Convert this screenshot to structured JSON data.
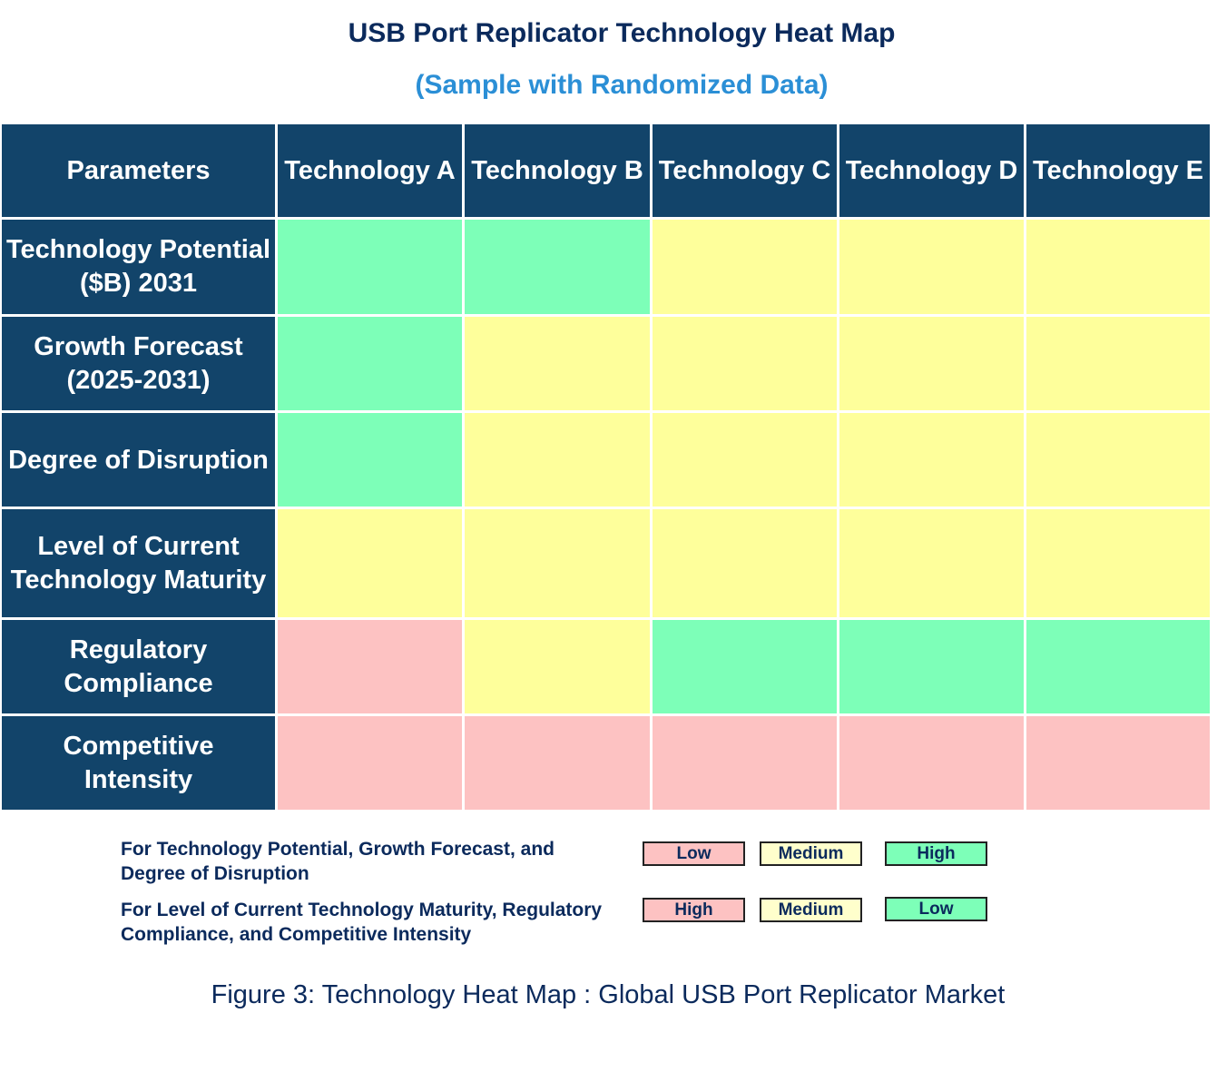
{
  "title": "USB Port Replicator Technology Heat Map",
  "subtitle": "(Sample with Randomized Data)",
  "chart_data": {
    "type": "heatmap",
    "corner_label": "Parameters",
    "columns": [
      "Technology A",
      "Technology B",
      "Technology C",
      "Technology D",
      "Technology E"
    ],
    "rows": [
      {
        "label": "Technology Potential ($B) 2031",
        "values": [
          "High",
          "High",
          "Medium",
          "Medium",
          "Medium"
        ]
      },
      {
        "label": "Growth Forecast (2025-2031)",
        "values": [
          "High",
          "Medium",
          "Medium",
          "Medium",
          "Medium"
        ]
      },
      {
        "label": "Degree of Disruption",
        "values": [
          "High",
          "Medium",
          "Medium",
          "Medium",
          "Medium"
        ]
      },
      {
        "label": "Level of Current Technology Maturity",
        "values": [
          "Medium",
          "Medium",
          "Medium",
          "Medium",
          "Medium"
        ]
      },
      {
        "label": "Regulatory Compliance",
        "values": [
          "High",
          "Medium",
          "Low",
          "Low",
          "Low"
        ]
      },
      {
        "label": "Competitive Intensity",
        "values": [
          "High",
          "High",
          "High",
          "High",
          "High"
        ]
      }
    ],
    "colors": {
      "pink": "#fdc2c2",
      "yellow": "#feff9b",
      "green": "#7dffb8",
      "header": "#12446a",
      "legend_yellow": "#ffffcc"
    },
    "legend": [
      {
        "text": "For Technology Potential, Growth Forecast, and Degree of Disruption",
        "items": [
          {
            "label": "Low",
            "color": "#fdc2c2"
          },
          {
            "label": "Medium",
            "color": "#ffffcc"
          },
          {
            "label": "High",
            "color": "#7dffb8"
          }
        ]
      },
      {
        "text": "For Level of Current Technology Maturity, Regulatory Compliance, and Competitive Intensity",
        "items": [
          {
            "label": "High",
            "color": "#fdc2c2"
          },
          {
            "label": "Medium",
            "color": "#ffffcc"
          },
          {
            "label": "Low",
            "color": "#7dffb8"
          }
        ]
      }
    ]
  },
  "caption": "Figure 3: Technology Heat Map : Global USB Port Replicator  Market"
}
